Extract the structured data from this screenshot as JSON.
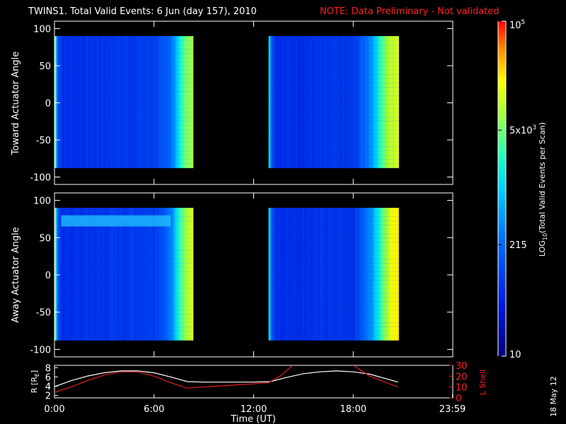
{
  "header": {
    "title": "TWINS1. Total Valid Events:  6 Jun (day 157), 2010",
    "note": "NOTE: Data Preliminary - Not validated",
    "note_color": "#ff2020"
  },
  "footer": {
    "stamp": "18 May 12"
  },
  "colorbar": {
    "label": "LOG10(Total Valid Events per Scan)",
    "label_main": "LOG",
    "label_sub": "10",
    "label_rest": "(Total Valid Events per Scan)",
    "ticks": [
      {
        "label": "10",
        "value": 10
      },
      {
        "label": "215",
        "value": 215
      },
      {
        "label": "5x10",
        "sup": "3",
        "value": 5000
      },
      {
        "label": "10",
        "sup": "5",
        "value": 100000
      }
    ],
    "range": [
      10,
      100000
    ],
    "scale": "log"
  },
  "chart_data": [
    {
      "type": "heatmap",
      "ylabel": "Toward Actuator Angle",
      "ylim": [
        -110,
        110
      ],
      "yticks": [
        "-100",
        "-50",
        "0",
        "50",
        "100"
      ],
      "y_extent": [
        -88,
        90
      ],
      "xlim": [
        0,
        24
      ],
      "blocks": [
        {
          "x_start": 0.0,
          "x_end": 8.3,
          "profile": [
            [
              0.0,
              0.7
            ],
            [
              0.05,
              0.62
            ],
            [
              0.12,
              0.28
            ],
            [
              0.5,
              0.2
            ],
            [
              6.0,
              0.24
            ],
            [
              6.8,
              0.3
            ],
            [
              7.2,
              0.42
            ],
            [
              7.5,
              0.55
            ],
            [
              7.8,
              0.68
            ],
            [
              8.3,
              0.72
            ]
          ]
        },
        {
          "x_start": 12.9,
          "x_end": 20.7,
          "profile": [
            [
              12.9,
              0.55
            ],
            [
              13.05,
              0.3
            ],
            [
              13.3,
              0.2
            ],
            [
              18.0,
              0.22
            ],
            [
              18.6,
              0.32
            ],
            [
              19.2,
              0.45
            ],
            [
              19.6,
              0.62
            ],
            [
              20.2,
              0.75
            ],
            [
              20.7,
              0.78
            ]
          ]
        }
      ]
    },
    {
      "type": "heatmap",
      "ylabel": "Away Actuator Angle",
      "ylim": [
        -110,
        110
      ],
      "yticks": [
        "-100",
        "-50",
        "0",
        "50",
        "100"
      ],
      "y_extent": [
        -88,
        90
      ],
      "xlim": [
        0,
        24
      ],
      "band": {
        "y_from": 65,
        "y_to": 80,
        "x_from": 0.4,
        "x_to": 7.0
      },
      "blocks": [
        {
          "x_start": 0.0,
          "x_end": 8.3,
          "profile": [
            [
              0.0,
              0.72
            ],
            [
              0.05,
              0.64
            ],
            [
              0.12,
              0.28
            ],
            [
              0.5,
              0.2
            ],
            [
              6.0,
              0.24
            ],
            [
              6.8,
              0.32
            ],
            [
              7.2,
              0.45
            ],
            [
              7.5,
              0.6
            ],
            [
              7.8,
              0.72
            ],
            [
              8.3,
              0.78
            ]
          ]
        },
        {
          "x_start": 12.9,
          "x_end": 20.7,
          "profile": [
            [
              12.9,
              0.55
            ],
            [
              13.05,
              0.3
            ],
            [
              13.3,
              0.2
            ],
            [
              18.0,
              0.22
            ],
            [
              18.6,
              0.32
            ],
            [
              19.2,
              0.45
            ],
            [
              19.6,
              0.62
            ],
            [
              20.2,
              0.8
            ],
            [
              20.7,
              0.85
            ]
          ]
        }
      ]
    },
    {
      "type": "line",
      "ylabel": "R [RE]",
      "ylabel_main": "R [R",
      "ylabel_sub": "E",
      "ylabel_end": "]",
      "y2label": "L Shell",
      "xlabel": "Time (UT)",
      "xticks": [
        "0:00",
        "6:00",
        "12:00",
        "18:00",
        "23:59"
      ],
      "xtick_values": [
        0,
        6,
        12,
        18,
        23.98
      ],
      "xlim": [
        0,
        24
      ],
      "ylim": [
        1.5,
        8.5
      ],
      "yticks": [
        "2",
        "4",
        "6",
        "8"
      ],
      "y2lim": [
        0,
        30
      ],
      "y2ticks": [
        "0",
        "10",
        "20",
        "30"
      ],
      "series": [
        {
          "color": "#ffffff",
          "axis": "left",
          "x": [
            0,
            1,
            2,
            3,
            4,
            5,
            6,
            7,
            8,
            9,
            10,
            11,
            12,
            13,
            14,
            15,
            16,
            17,
            18,
            19,
            20,
            20.7
          ],
          "y": [
            3.9,
            5.2,
            6.2,
            6.9,
            7.3,
            7.3,
            6.9,
            6.0,
            5.0,
            4.9,
            4.9,
            4.9,
            4.9,
            5.0,
            5.9,
            6.7,
            7.1,
            7.3,
            7.1,
            6.6,
            5.6,
            4.9
          ]
        },
        {
          "color": "#e02020",
          "axis": "right",
          "x": [
            0,
            1,
            2,
            3,
            4,
            5,
            6,
            7,
            8,
            10,
            12,
            12.9,
            13.6,
            14.2,
            14.5
          ],
          "y": [
            5,
            10,
            16,
            21,
            24,
            24,
            20,
            14,
            9,
            11,
            13,
            14,
            20,
            28,
            32
          ]
        },
        {
          "color": "#e02020",
          "axis": "right",
          "x": [
            17.8,
            18.3,
            19.0,
            20.0,
            20.7
          ],
          "y": [
            32,
            27,
            20,
            14,
            10
          ]
        }
      ]
    }
  ]
}
